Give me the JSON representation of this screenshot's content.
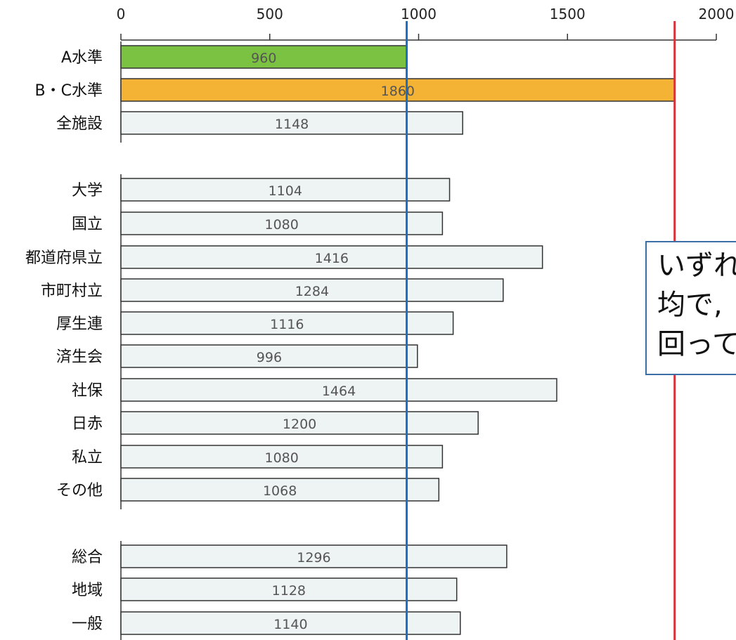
{
  "chart_data": {
    "type": "bar",
    "orientation": "horizontal",
    "xlim": [
      0,
      2000
    ],
    "x_ticks": [
      0,
      500,
      1000,
      1500,
      2000
    ],
    "categories": [
      "A水準",
      "B・C水準",
      "全施設",
      "大学",
      "国立",
      "都道府県立",
      "市町村立",
      "厚生連",
      "済生会",
      "社保",
      "日赤",
      "私立",
      "その他",
      "総合",
      "地域",
      "一般"
    ],
    "values": [
      960,
      1860,
      1148,
      1104,
      1080,
      1416,
      1284,
      1116,
      996,
      1464,
      1200,
      1080,
      1068,
      1296,
      1128,
      1140
    ],
    "bar_colors": [
      "#7cc242",
      "#f5b335",
      "#eef3f4",
      "#eef3f4",
      "#eef3f4",
      "#eef3f4",
      "#eef3f4",
      "#eef3f4",
      "#eef3f4",
      "#eef3f4",
      "#eef3f4",
      "#eef3f4",
      "#eef3f4",
      "#eef3f4",
      "#eef3f4",
      "#eef3f4"
    ],
    "groups": [
      [
        0,
        1,
        2
      ],
      [
        3,
        4,
        5,
        6,
        7,
        8,
        9,
        10,
        11,
        12
      ],
      [
        13,
        14,
        15
      ]
    ],
    "reference_lines": [
      {
        "value": 960,
        "color": "#1a6fc2"
      },
      {
        "value": 1860,
        "color": "#d9303a"
      }
    ],
    "grid": false
  },
  "note": {
    "lines": [
      "いずれ",
      "均で,",
      "回って"
    ]
  }
}
